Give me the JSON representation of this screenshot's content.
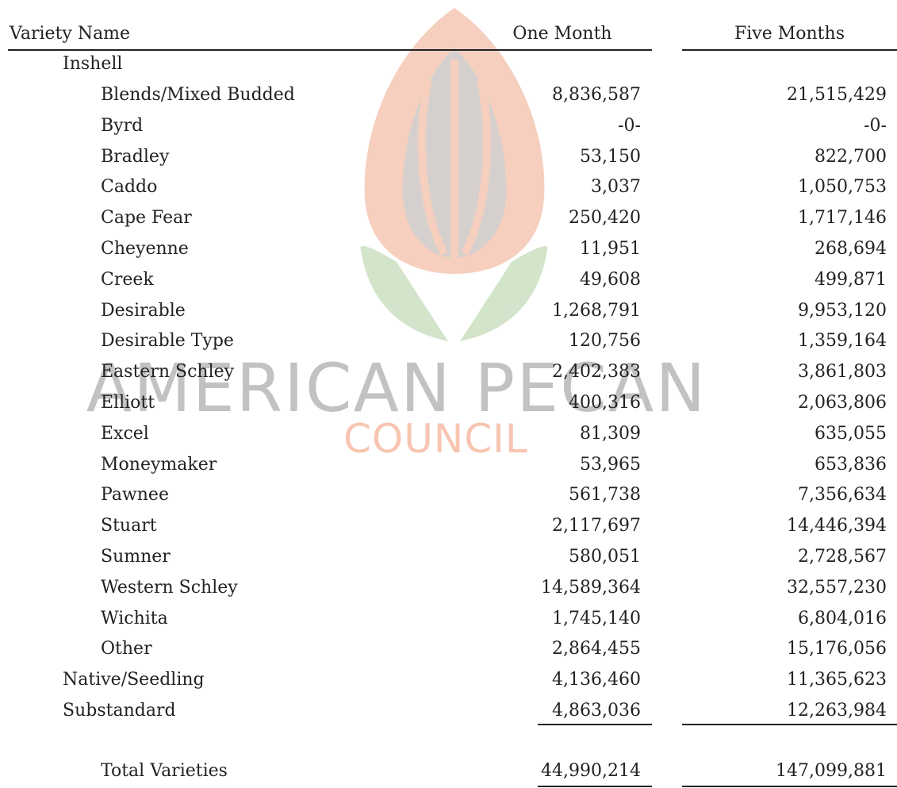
{
  "watermark": {
    "line1": "AMERICAN PECAN",
    "line2": "COUNCIL"
  },
  "table": {
    "header": [
      "Variety Name",
      "One Month",
      "Five Months"
    ],
    "inshell": {
      "label": "Inshell",
      "rows": [
        [
          "Blends/Mixed Budded",
          "8,836,587",
          "21,515,429"
        ],
        [
          "Byrd",
          "-0-",
          "-0-"
        ],
        [
          "Bradley",
          "53,150",
          "822,700"
        ],
        [
          "Caddo",
          "3,037",
          "1,050,753"
        ],
        [
          "Cape Fear",
          "250,420",
          "1,717,146"
        ],
        [
          "Cheyenne",
          "11,951",
          "268,694"
        ],
        [
          "Creek",
          "49,608",
          "499,871"
        ],
        [
          "Desirable",
          "1,268,791",
          "9,953,120"
        ],
        [
          "Desirable Type",
          "120,756",
          "1,359,164"
        ],
        [
          "Eastern Schley",
          "2,402,383",
          "3,861,803"
        ],
        [
          "Elliott",
          "400,316",
          "2,063,806"
        ],
        [
          "Excel",
          "81,309",
          "635,055"
        ],
        [
          "Moneymaker",
          "53,965",
          "653,836"
        ],
        [
          "Pawnee",
          "561,738",
          "7,356,634"
        ],
        [
          "Stuart",
          "2,117,697",
          "14,446,394"
        ],
        [
          "Sumner",
          "580,051",
          "2,728,567"
        ],
        [
          "Western Schley",
          "14,589,364",
          "32,557,230"
        ],
        [
          "Wichita",
          "1,745,140",
          "6,804,016"
        ],
        [
          "Other",
          "2,864,455",
          "15,176,056"
        ]
      ]
    },
    "other_rows": [
      [
        "Native/Seedling",
        "4,136,460",
        "11,365,623"
      ],
      [
        "Substandard",
        "4,863,036",
        "12,263,984"
      ]
    ],
    "total": [
      "Total Varieties",
      "44,990,214",
      "147,099,881"
    ]
  }
}
